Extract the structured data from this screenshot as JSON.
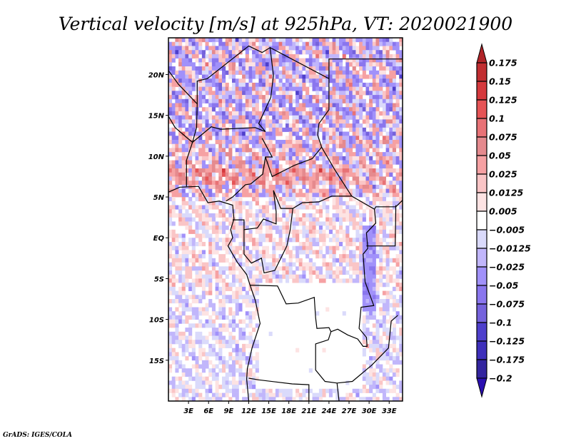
{
  "chart_data": {
    "type": "heatmap",
    "title": "Vertical velocity [m/s] at 925hPa, VT: 2020021900",
    "variable": "Vertical velocity",
    "units": "m/s",
    "level": "925hPa",
    "valid_time": "2020021900",
    "xlabel": "",
    "ylabel": "",
    "x_ticks": [
      "3E",
      "6E",
      "9E",
      "12E",
      "15E",
      "18E",
      "21E",
      "24E",
      "27E",
      "30E",
      "33E"
    ],
    "x_tick_values": [
      3,
      6,
      9,
      12,
      15,
      18,
      21,
      24,
      27,
      30,
      33
    ],
    "y_ticks": [
      "20N",
      "15N",
      "10N",
      "5N",
      "EQ",
      "5S",
      "10S",
      "15S"
    ],
    "y_tick_values": [
      20,
      15,
      10,
      5,
      0,
      -5,
      -10,
      -15
    ],
    "xlim": [
      0,
      35
    ],
    "ylim": [
      -20,
      24.5
    ],
    "grid": false,
    "map_overlay": "country borders and coastlines (Central & West-Central Africa)",
    "colorbar": {
      "placement": "right",
      "orientation": "vertical",
      "extend": "both",
      "levels": [
        "0.175",
        "0.15",
        "0.125",
        "0.1",
        "0.075",
        "0.05",
        "0.025",
        "0.0125",
        "0.005",
        "-0.005",
        "-0.0125",
        "-0.025",
        "-0.05",
        "-0.075",
        "-0.1",
        "-0.125",
        "-0.175",
        "-0.2"
      ],
      "colors": [
        "#b02428",
        "#c12e31",
        "#d5393d",
        "#e65456",
        "#e87276",
        "#e58a8e",
        "#f6a1a3",
        "#fac5c6",
        "#fde3e3",
        "#ffffff",
        "#dadafb",
        "#c1b6fb",
        "#a191fa",
        "#8a76ee",
        "#7562dc",
        "#4e3fcc",
        "#3e2fbb",
        "#33259f",
        "#2a0fb0"
      ]
    },
    "field_summary": [
      {
        "region": "Sahara / Chad-Sudan north",
        "tendency": "mixed, strongly blue (sinking-negative) with red streaks"
      },
      {
        "region": "Sahel band ~7-9N",
        "tendency": "red (positive) streaks along 8N"
      },
      {
        "region": "Gulf of Guinea / Congo basin",
        "tendency": "weak mixed pink and light blue"
      },
      {
        "region": "Angola / Zambia interior",
        "tendency": "mostly white (near zero)"
      },
      {
        "region": "East African Rift lakes",
        "tendency": "blue bands"
      }
    ]
  },
  "footer": {
    "credit": "GrADS: IGES/COLA"
  }
}
